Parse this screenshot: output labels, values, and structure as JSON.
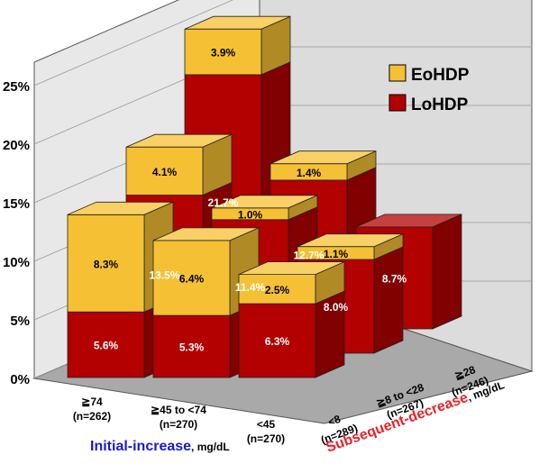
{
  "chart_data": {
    "type": "bar",
    "stacked": true,
    "three_d": true,
    "y_axis": {
      "ticks": [
        "0%",
        "5%",
        "10%",
        "15%",
        "20%",
        "25%"
      ],
      "range": [
        0,
        27
      ]
    },
    "legend": {
      "placement": "top-right",
      "entries": [
        {
          "name": "EoHDP",
          "color": "#f5c033"
        },
        {
          "name": "LoHDP",
          "color": "#b30000"
        }
      ]
    },
    "x_axis": {
      "label": "Initial-increase",
      "unit": ", mg/dL",
      "label_color": "#1a1acc",
      "groups": [
        {
          "line1": "≧74",
          "line2": "(n=262)"
        },
        {
          "line1": "≧45 to <74",
          "line2": "(n=270)"
        },
        {
          "line1": "<45",
          "line2": "(n=270)"
        }
      ]
    },
    "depth_axis": {
      "label": "Subsequent-decrease",
      "unit": ", mg/dL",
      "label_color": "#e8222a",
      "groups": [
        {
          "line1": "<8",
          "line2": "(n=289)"
        },
        {
          "line1": "≧8 to <28",
          "line2": "(n=267)"
        },
        {
          "line1": "≧28",
          "line2": "(n=246)"
        }
      ]
    },
    "bars": [
      {
        "initial": "≧74",
        "subsequent": "≧28",
        "LoHDP": 21.7,
        "LoHDP_label": "21.7%",
        "EoHDP": 3.9,
        "EoHDP_label": "3.9%"
      },
      {
        "initial": "≧45 to <74",
        "subsequent": "≧28",
        "LoHDP": 12.7,
        "LoHDP_label": "12.7%",
        "EoHDP": 1.4,
        "EoHDP_label": "1.4%"
      },
      {
        "initial": "<45",
        "subsequent": "≧28",
        "LoHDP": 8.7,
        "LoHDP_label": "8.7%",
        "EoHDP": 0.0,
        "EoHDP_label": ""
      },
      {
        "initial": "≧74",
        "subsequent": "≧8 to <28",
        "LoHDP": 13.5,
        "LoHDP_label": "13.5%",
        "EoHDP": 4.1,
        "EoHDP_label": "4.1%"
      },
      {
        "initial": "≧45 to <74",
        "subsequent": "≧8 to <28",
        "LoHDP": 11.4,
        "LoHDP_label": "11.4%",
        "EoHDP": 1.0,
        "EoHDP_label": "1.0%"
      },
      {
        "initial": "<45",
        "subsequent": "≧8 to <28",
        "LoHDP": 8.0,
        "LoHDP_label": "8.0%",
        "EoHDP": 1.1,
        "EoHDP_label": "1.1%"
      },
      {
        "initial": "≧74",
        "subsequent": "<8",
        "LoHDP": 5.6,
        "LoHDP_label": "5.6%",
        "EoHDP": 8.3,
        "EoHDP_label": "8.3%"
      },
      {
        "initial": "≧45 to <74",
        "subsequent": "<8",
        "LoHDP": 5.3,
        "LoHDP_label": "5.3%",
        "EoHDP": 6.4,
        "EoHDP_label": "6.4%"
      },
      {
        "initial": "<45",
        "subsequent": "<8",
        "LoHDP": 6.3,
        "LoHDP_label": "6.3%",
        "EoHDP": 2.5,
        "EoHDP_label": "2.5%"
      }
    ]
  }
}
